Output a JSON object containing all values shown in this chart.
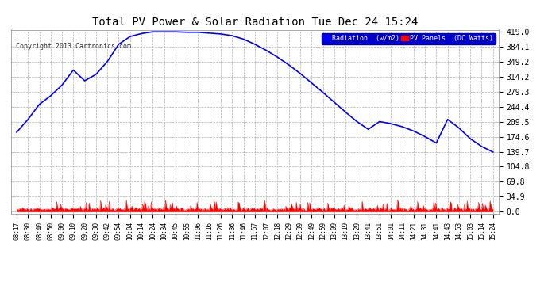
{
  "title": "Total PV Power & Solar Radiation Tue Dec 24 15:24",
  "copyright": "Copyright 2013 Cartronics.com",
  "legend_labels": [
    "Radiation  (w/m2)",
    "PV Panels  (DC Watts)"
  ],
  "legend_colors": [
    "#0000ff",
    "#ff0000"
  ],
  "legend_bg": "#0000cd",
  "background_color": "#ffffff",
  "plot_bg": "#ffffff",
  "grid_color": "#b0b0b0",
  "yticks": [
    0.0,
    34.9,
    69.8,
    104.8,
    139.7,
    174.6,
    209.5,
    244.4,
    279.3,
    314.2,
    349.2,
    384.1,
    419.0
  ],
  "ymax": 419.0,
  "ymin": 0.0,
  "blue_line_color": "#0000ff",
  "red_line_color": "#ff0000",
  "xtick_labels": [
    "08:17",
    "08:30",
    "08:40",
    "08:50",
    "09:00",
    "09:10",
    "09:20",
    "09:30",
    "09:42",
    "09:54",
    "10:04",
    "10:14",
    "10:24",
    "10:34",
    "10:45",
    "10:55",
    "11:06",
    "11:16",
    "11:26",
    "11:36",
    "11:46",
    "11:57",
    "12:07",
    "12:18",
    "12:29",
    "12:39",
    "12:49",
    "12:59",
    "13:09",
    "13:19",
    "13:29",
    "13:41",
    "13:51",
    "14:01",
    "14:11",
    "14:21",
    "14:31",
    "14:41",
    "14:43",
    "14:53",
    "15:03",
    "15:14",
    "15:24"
  ]
}
